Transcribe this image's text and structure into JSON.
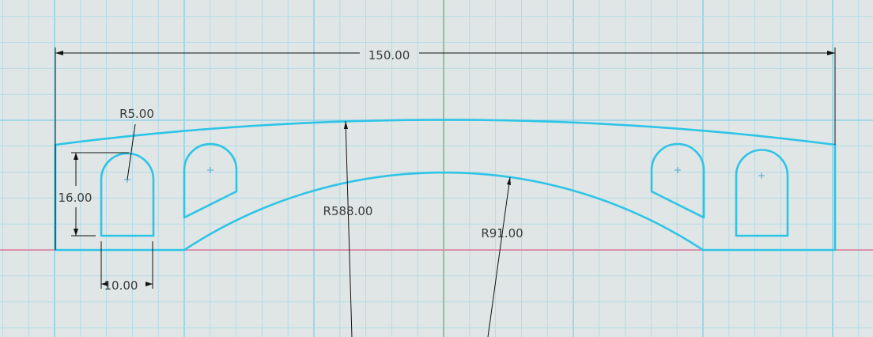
{
  "colors": {
    "background": "#e0e6e6",
    "grid_minor": "#b3dbe6",
    "grid_major": "#8fd3e6",
    "sketch": "#2ec4e6",
    "x_axis": "#e87a95",
    "y_axis": "#7cbf7c",
    "dimension": "#111111"
  },
  "dimensions": {
    "overall_width": "150.00",
    "slot_height": "16.00",
    "slot_width": "10.00",
    "slot_radius": "R5.00",
    "outer_radius": "R588.00",
    "inner_radius": "R91.00"
  }
}
